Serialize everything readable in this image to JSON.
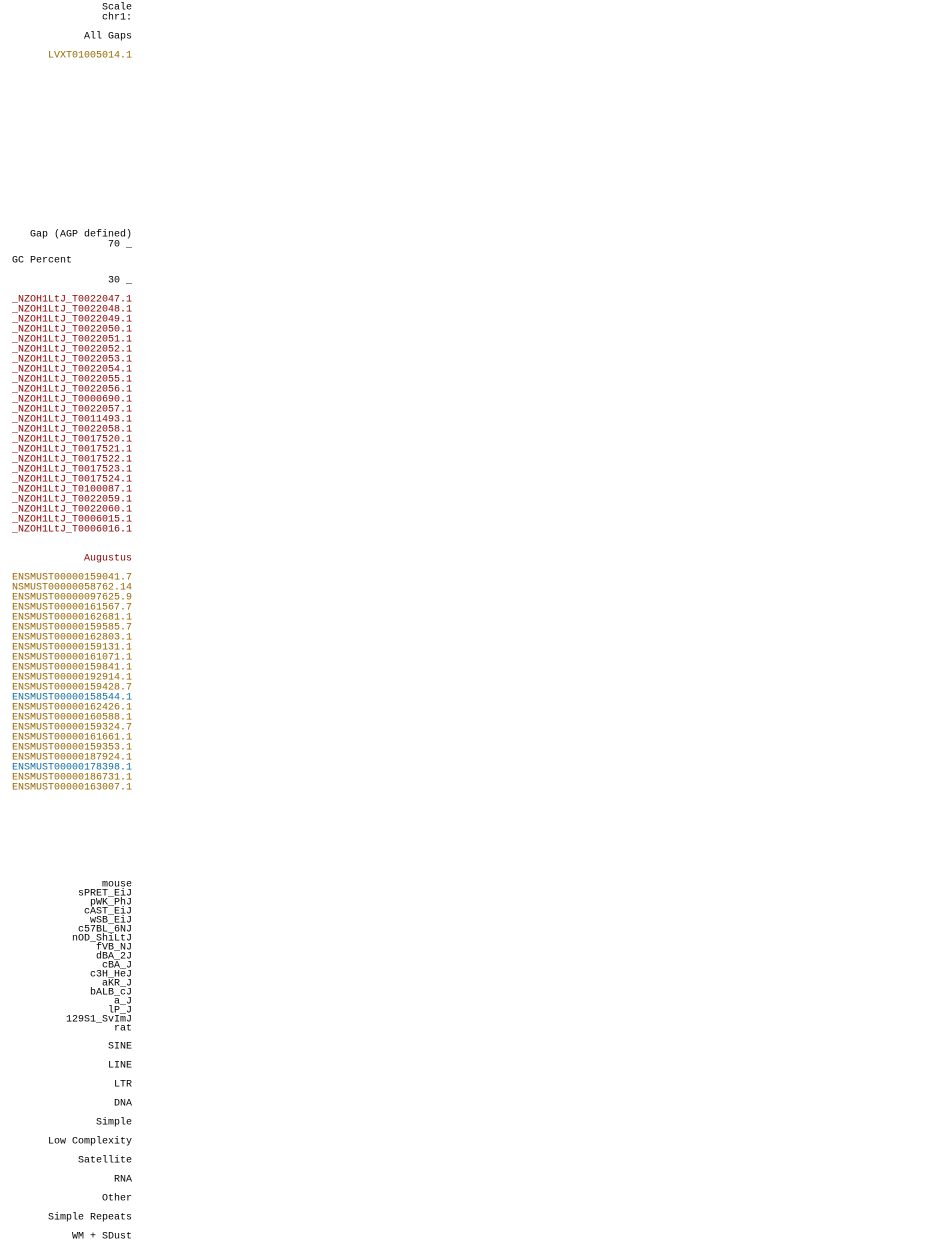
{
  "groups": [
    {
      "color": "#000000",
      "labels": [
        "Scale",
        "chr1:"
      ]
    },
    {
      "color": "#000000",
      "labels": [
        "All Gaps"
      ]
    },
    {
      "color": "#996600",
      "labels": [
        "LVXT01005014.1"
      ]
    },
    {
      "color": "#000000",
      "labels": [
        "Gap (AGP defined)",
        "70 _"
      ]
    },
    {
      "color": "#000000",
      "labels": [
        "GC Percent"
      ]
    },
    {
      "color": "#000000",
      "labels": [
        "30 _"
      ]
    },
    {
      "color": "#8b0000",
      "labels": [
        "_NZOH1LtJ_T0022047.1",
        "_NZOH1LtJ_T0022048.1",
        "_NZOH1LtJ_T0022049.1",
        "_NZOH1LtJ_T0022050.1",
        "_NZOH1LtJ_T0022051.1",
        "_NZOH1LtJ_T0022052.1",
        "_NZOH1LtJ_T0022053.1",
        "_NZOH1LtJ_T0022054.1",
        "_NZOH1LtJ_T0022055.1",
        "_NZOH1LtJ_T0022056.1",
        "_NZOH1LtJ_T0000690.1",
        "_NZOH1LtJ_T0022057.1",
        "_NZOH1LtJ_T0011493.1",
        "_NZOH1LtJ_T0022058.1",
        "_NZOH1LtJ_T0017520.1",
        "_NZOH1LtJ_T0017521.1",
        "_NZOH1LtJ_T0017522.1",
        "_NZOH1LtJ_T0017523.1",
        "_NZOH1LtJ_T0017524.1",
        "_NZOH1LtJ_T0100087.1",
        "_NZOH1LtJ_T0022059.1",
        "_NZOH1LtJ_T0022060.1",
        "_NZOH1LtJ_T0006015.1",
        "_NZOH1LtJ_T0006016.1"
      ]
    },
    {
      "color": "#8b0000",
      "labels": [
        "Augustus"
      ]
    },
    {
      "color": "#996600",
      "labels": [
        "ENSMUST00000159041.7",
        "NSMUST00000058762.14",
        "ENSMUST00000097625.9",
        "ENSMUST00000161567.7",
        "ENSMUST00000162681.1",
        "ENSMUST00000159585.7",
        "ENSMUST00000162803.1",
        "ENSMUST00000159131.1",
        "ENSMUST00000161071.1",
        "ENSMUST00000159841.1",
        "ENSMUST00000192914.1",
        "ENSMUST00000159428.7",
        "ENSMUST00000158544.1",
        "ENSMUST00000162426.1",
        "ENSMUST00000160588.1",
        "ENSMUST00000159324.7",
        "ENSMUST00000161661.1",
        "ENSMUST00000159353.1",
        "ENSMUST00000187924.1",
        "ENSMUST00000178398.1",
        "ENSMUST00000186731.1",
        "ENSMUST00000163007.1"
      ],
      "colors": [
        "#996600",
        "#996600",
        "#996600",
        "#996600",
        "#996600",
        "#996600",
        "#996600",
        "#996600",
        "#996600",
        "#996600",
        "#996600",
        "#996600",
        "#0c6ea0",
        "#996600",
        "#996600",
        "#996600",
        "#996600",
        "#996600",
        "#996600",
        "#0c6ea0",
        "#996600",
        "#996600"
      ]
    },
    {
      "color": "#000000",
      "labels": [
        "mouse",
        "sPRET_EiJ",
        "pWK_PhJ",
        "cAST_EiJ",
        "wSB_EiJ",
        "c57BL_6NJ",
        "nOD_ShiLtJ",
        "fVB_NJ",
        "dBA_2J",
        "cBA_J",
        "c3H_HeJ",
        "aKR_J",
        "bALB_cJ",
        "a_J",
        "lP_J",
        "129S1_SvImJ",
        "rat"
      ]
    },
    {
      "color": "#000000",
      "labels": [
        "SINE",
        "LINE",
        "LTR",
        "DNA",
        "Simple",
        "Low Complexity",
        "Satellite",
        "RNA",
        "Other",
        "Simple Repeats",
        "WM + SDust"
      ]
    }
  ]
}
